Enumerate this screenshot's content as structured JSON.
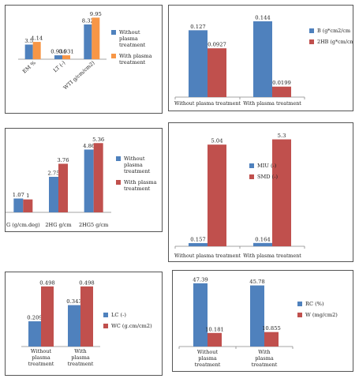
{
  "chart_data": [
    {
      "id": "c1",
      "type": "bar",
      "categories": [
        "EM %",
        "LT (-)",
        "WTI g/cm/cm2)"
      ],
      "series": [
        {
          "name": "Without plasma treatment",
          "values": [
            3.5,
            0.934,
            8.32
          ],
          "color": "#4f81bd"
        },
        {
          "name": "With plasma treatment",
          "values": [
            4.14,
            0.931,
            9.95
          ],
          "color": "#f79646"
        }
      ],
      "labels": [
        [
          "3.5",
          "0.934",
          "8.32"
        ],
        [
          "4.14",
          "0.931",
          "9.95"
        ]
      ],
      "ylim": [
        0,
        10.2
      ],
      "grid": false,
      "legend": "right"
    },
    {
      "id": "c2",
      "type": "bar",
      "categories": [
        "Without plasma treatment",
        "With plasma treatment"
      ],
      "series": [
        {
          "name": "B (g*cm2/cm",
          "values": [
            0.127,
            0.144
          ],
          "color": "#4f81bd"
        },
        {
          "name": "2HB (g*cm/cm",
          "values": [
            0.0927,
            0.0199
          ],
          "color": "#c0504d"
        }
      ],
      "labels": [
        [
          "0.127",
          "0.144"
        ],
        [
          "0.0927",
          "0.0199"
        ]
      ],
      "ylim": [
        0,
        0.147
      ],
      "grid": false,
      "legend": "right"
    },
    {
      "id": "c3",
      "type": "bar",
      "categories": [
        "G (g/cm.deg)",
        "2HG g/cm",
        "2HG5 g/cm"
      ],
      "series": [
        {
          "name": "Without plasma treatment",
          "values": [
            1.07,
            2.75,
            4.86
          ],
          "color": "#4f81bd"
        },
        {
          "name": "With plasma treatment",
          "values": [
            1,
            3.76,
            5.36
          ],
          "color": "#c0504d"
        }
      ],
      "labels": [
        [
          "1.07",
          "2.75",
          "4.86"
        ],
        [
          "1",
          "3.76",
          "5.36"
        ]
      ],
      "ylim": [
        0,
        5.5
      ],
      "grid": false,
      "legend": "right"
    },
    {
      "id": "c4",
      "type": "bar",
      "categories": [
        "Without plasma treatment",
        "With plasma treatment"
      ],
      "series": [
        {
          "name": "MIU (-)",
          "values": [
            0.157,
            0.164
          ],
          "color": "#4f81bd"
        },
        {
          "name": "SMD (-)",
          "values": [
            5.04,
            5.3
          ],
          "color": "#c0504d"
        }
      ],
      "labels": [
        [
          "0.157",
          "0.164"
        ],
        [
          "5.04",
          "5.3"
        ]
      ],
      "ylim": [
        0,
        5.4
      ],
      "grid": false,
      "legend": "right"
    },
    {
      "id": "c5",
      "type": "bar",
      "categories": [
        "Without plasma treatment",
        "With plasma treatment"
      ],
      "series": [
        {
          "name": "LC (-)",
          "values": [
            0.209,
            0.343
          ],
          "color": "#4f81bd"
        },
        {
          "name": "WC (g.cm/cm2)",
          "values": [
            0.498,
            0.498
          ],
          "color": "#c0504d"
        }
      ],
      "labels": [
        [
          "0.209",
          "0.343"
        ],
        [
          "0.498",
          "0.498"
        ]
      ],
      "ylim": [
        0,
        0.51
      ],
      "grid": false,
      "legend": "right"
    },
    {
      "id": "c6",
      "type": "bar",
      "categories": [
        "Without plasma treatment",
        "With plasma treatment"
      ],
      "series": [
        {
          "name": "RC (%)",
          "values": [
            47.39,
            45.78
          ],
          "color": "#4f81bd"
        },
        {
          "name": "W (mg/cm2)",
          "values": [
            10.181,
            10.855
          ],
          "color": "#c0504d"
        }
      ],
      "labels": [
        [
          "47.39",
          "45.78"
        ],
        [
          "10.181",
          "10.855"
        ]
      ],
      "ylim": [
        0,
        48.5
      ],
      "grid": false,
      "legend": "right"
    }
  ]
}
